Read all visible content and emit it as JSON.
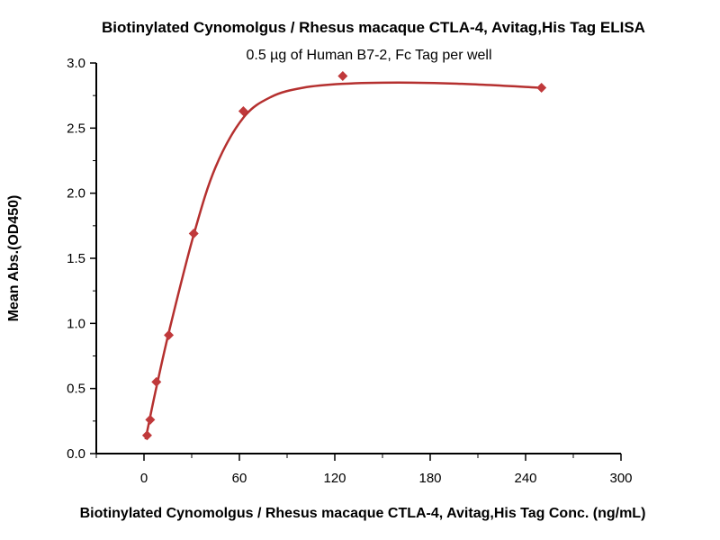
{
  "chart_data": {
    "type": "scatter",
    "title": "Biotinylated Cynomolgus / Rhesus macaque CTLA-4, Avitag,His Tag ELISA",
    "subtitle": "0.5 µg of Human B7-2, Fc Tag per well",
    "xlabel": "Biotinylated Cynomolgus / Rhesus macaque CTLA-4, Avitag,His Tag Conc. (ng/mL)",
    "ylabel": "Mean Abs.(OD450)",
    "xlim": [
      -30,
      300
    ],
    "ylim": [
      0,
      3.0
    ],
    "xticks": [
      0,
      60,
      120,
      180,
      240,
      300
    ],
    "xtick_labels": [
      "0",
      "60",
      "120",
      "180",
      "240",
      "300"
    ],
    "yticks": [
      0,
      0.5,
      1.0,
      1.5,
      2.0,
      2.5,
      3.0
    ],
    "ytick_labels": [
      "0.0",
      "0.5",
      "1.0",
      "1.5",
      "2.0",
      "2.5",
      "3.0"
    ],
    "grid": false,
    "series": [
      {
        "name": "data",
        "x": [
          1.95,
          3.9,
          7.8,
          15.6,
          31.25,
          62.5,
          125,
          250
        ],
        "y": [
          0.14,
          0.26,
          0.55,
          0.91,
          1.69,
          2.63,
          2.9,
          2.81
        ],
        "color": "#c0393b"
      }
    ],
    "fit_curve": {
      "x": [
        1,
        2,
        4,
        8,
        16,
        31.25,
        45,
        62.5,
        80,
        100,
        125,
        160,
        200,
        250
      ],
      "y": [
        0.11,
        0.17,
        0.29,
        0.52,
        0.95,
        1.68,
        2.2,
        2.58,
        2.74,
        2.81,
        2.84,
        2.85,
        2.84,
        2.81
      ],
      "color": "#b5302f"
    }
  }
}
